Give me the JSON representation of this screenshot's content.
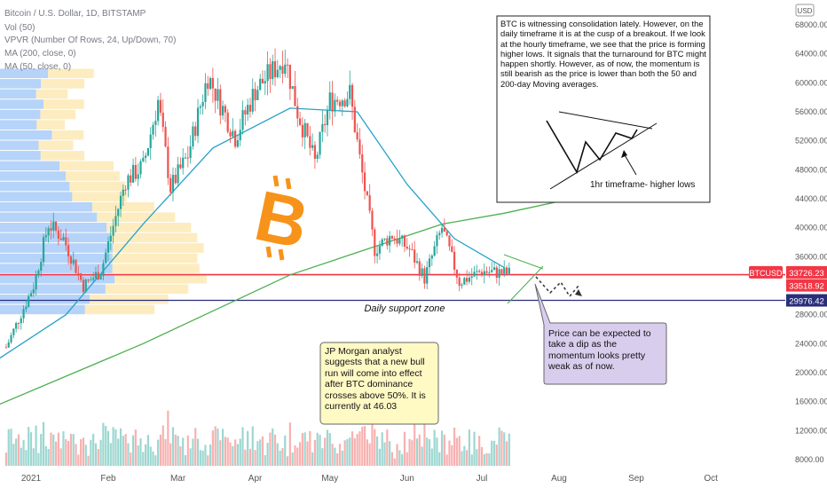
{
  "chart_data": {
    "type": "candlestick",
    "symbol_line": "Bitcoin / U.S. Dollar, 1D, BITSTAMP",
    "indicators": [
      "Vol (50)",
      "VPVR (Number Of Rows, 24, Up/Down, 70)",
      "MA (200, close, 0)",
      "MA (50, close, 0)"
    ],
    "currency_badge": "USD",
    "y_ticks": [
      {
        "value": 68000,
        "label": "68000.00"
      },
      {
        "value": 64000,
        "label": "64000.00"
      },
      {
        "value": 60000,
        "label": "60000.00"
      },
      {
        "value": 56000,
        "label": "56000.00"
      },
      {
        "value": 52000,
        "label": "52000.00"
      },
      {
        "value": 48000,
        "label": "48000.00"
      },
      {
        "value": 44000,
        "label": "44000.00"
      },
      {
        "value": 40000,
        "label": "40000.00"
      },
      {
        "value": 36000,
        "label": "36000.00"
      },
      {
        "value": 32000,
        "label": "32000.00"
      },
      {
        "value": 28000,
        "label": "28000.00"
      },
      {
        "value": 24000,
        "label": "24000.00"
      },
      {
        "value": 20000,
        "label": "20000.00"
      },
      {
        "value": 16000,
        "label": "16000.00"
      },
      {
        "value": 12000,
        "label": "12000.00"
      },
      {
        "value": 8000,
        "label": "8000.00"
      }
    ],
    "x_ticks": [
      {
        "date": "2021-01-01",
        "label": "2021"
      },
      {
        "date": "2021-02-01",
        "label": "Feb"
      },
      {
        "date": "2021-03-01",
        "label": "Mar"
      },
      {
        "date": "2021-04-01",
        "label": "Apr"
      },
      {
        "date": "2021-05-01",
        "label": "May"
      },
      {
        "date": "2021-06-01",
        "label": "Jun"
      },
      {
        "date": "2021-07-01",
        "label": "Jul"
      },
      {
        "date": "2021-08-01",
        "label": "Aug"
      },
      {
        "date": "2021-09-01",
        "label": "Sep"
      },
      {
        "date": "2021-10-01",
        "label": "Oct"
      }
    ],
    "price_labels": [
      {
        "tag": "BTCUSD",
        "value": "33726.23",
        "color": "#f23645"
      },
      {
        "value": "33518.92",
        "color": "#f23645"
      },
      {
        "value": "29976.42",
        "color": "#2a2e7a"
      }
    ],
    "price_keypoints": [
      {
        "date": "2020-12-22",
        "price": 23500
      },
      {
        "date": "2021-01-02",
        "price": 32000
      },
      {
        "date": "2021-01-08",
        "price": 40500
      },
      {
        "date": "2021-01-14",
        "price": 38500
      },
      {
        "date": "2021-01-22",
        "price": 32000
      },
      {
        "date": "2021-01-29",
        "price": 34000
      },
      {
        "date": "2021-02-08",
        "price": 46500
      },
      {
        "date": "2021-02-15",
        "price": 48500
      },
      {
        "date": "2021-02-21",
        "price": 57500
      },
      {
        "date": "2021-02-26",
        "price": 45500
      },
      {
        "date": "2021-03-05",
        "price": 50000
      },
      {
        "date": "2021-03-13",
        "price": 61000
      },
      {
        "date": "2021-03-24",
        "price": 52500
      },
      {
        "date": "2021-04-01",
        "price": 59000
      },
      {
        "date": "2021-04-13",
        "price": 63500
      },
      {
        "date": "2021-04-18",
        "price": 56000
      },
      {
        "date": "2021-04-25",
        "price": 49000
      },
      {
        "date": "2021-05-01",
        "price": 57500
      },
      {
        "date": "2021-05-09",
        "price": 58500
      },
      {
        "date": "2021-05-13",
        "price": 49500
      },
      {
        "date": "2021-05-19",
        "price": 37000
      },
      {
        "date": "2021-05-26",
        "price": 39000
      },
      {
        "date": "2021-06-02",
        "price": 37000
      },
      {
        "date": "2021-06-08",
        "price": 33000
      },
      {
        "date": "2021-06-15",
        "price": 40000
      },
      {
        "date": "2021-06-22",
        "price": 32500
      },
      {
        "date": "2021-07-01",
        "price": 34000
      },
      {
        "date": "2021-07-12",
        "price": 33700
      }
    ],
    "ma50_keypoints": [
      {
        "date": "2020-12-15",
        "price": 21000
      },
      {
        "date": "2021-01-15",
        "price": 28000
      },
      {
        "date": "2021-02-15",
        "price": 40500
      },
      {
        "date": "2021-03-15",
        "price": 51000
      },
      {
        "date": "2021-04-15",
        "price": 56500
      },
      {
        "date": "2021-05-12",
        "price": 56000
      },
      {
        "date": "2021-06-01",
        "price": 46000
      },
      {
        "date": "2021-06-20",
        "price": 38500
      },
      {
        "date": "2021-07-10",
        "price": 34500
      }
    ],
    "ma200_keypoints": [
      {
        "date": "2020-12-15",
        "price": 15000
      },
      {
        "date": "2021-02-15",
        "price": 24000
      },
      {
        "date": "2021-04-15",
        "price": 33500
      },
      {
        "date": "2021-06-15",
        "price": 40500
      },
      {
        "date": "2021-07-10",
        "price": 42000
      },
      {
        "date": "2021-08-06",
        "price": 44000
      }
    ],
    "support_label": "Daily support zone",
    "annotations": {
      "analysis_note": "BTC is witnessing consolidation lately. However, on the daily timeframe it is at the cusp of a breakout. If we look at the hourly timeframe, we see that the price is forming higher lows. It signals that the turnaround for BTC might happen shortly. However, as of now, the momentum is still bearish as the price is lower than both the 50 and 200-day Moving averages.",
      "sketch_label": "1hr timeframe- higher lows",
      "jpmorgan_note": "JP Morgan analyst suggests that a new bull run will come into effect after BTC dominance crosses above 50%. It is currently at 46.03",
      "dip_note": "Price can be expected to take a dip as the momentum looks pretty weak as of now."
    },
    "colors": {
      "up": "#26a69a",
      "down": "#ef5350",
      "ma50": "#26a2c8",
      "ma200": "#4caf50",
      "resistance": "#f23645",
      "support": "#2a2e7a",
      "vp_up": "#2f80ed",
      "vp_down": "#f7c948",
      "bitcoin_logo": "#f7931a"
    }
  }
}
